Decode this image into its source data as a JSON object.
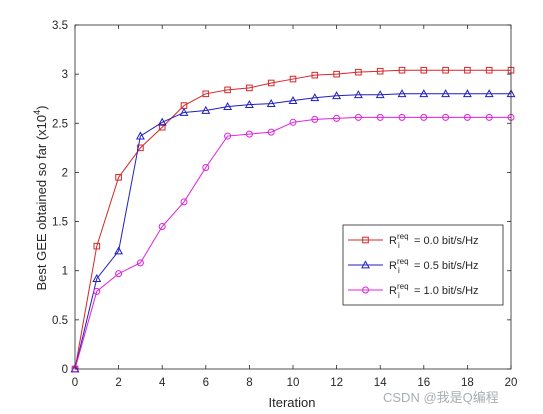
{
  "chart_data": {
    "type": "line",
    "xlabel": "Iteration",
    "ylabel": "Best GEE obtained so far (x10",
    "ylabel_exponent": "4",
    "ylabel_close": ")",
    "xlim": [
      0,
      20
    ],
    "ylim": [
      0,
      3.5
    ],
    "xticks": [
      0,
      2,
      4,
      6,
      8,
      10,
      12,
      14,
      16,
      18,
      20
    ],
    "yticks": [
      0,
      0.5,
      1,
      1.5,
      2,
      2.5,
      3,
      3.5
    ],
    "ytick_labels": [
      "0",
      "0.5",
      "1",
      "1.5",
      "2",
      "2.5",
      "3",
      "3.5"
    ],
    "grid": false,
    "legend_position": "right",
    "x": [
      0,
      1,
      2,
      3,
      4,
      5,
      6,
      7,
      8,
      9,
      10,
      11,
      12,
      13,
      14,
      15,
      16,
      17,
      18,
      19,
      20
    ],
    "series": [
      {
        "legend_base": "R",
        "legend_sub": "i",
        "legend_sup": "req",
        "legend_rest": " = 0.0 bit/s/Hz",
        "color": "#d62728",
        "marker": "square",
        "values": [
          0,
          1.25,
          1.95,
          2.25,
          2.46,
          2.68,
          2.8,
          2.84,
          2.86,
          2.91,
          2.95,
          2.99,
          3.0,
          3.02,
          3.03,
          3.04,
          3.04,
          3.04,
          3.04,
          3.04,
          3.04
        ]
      },
      {
        "legend_base": "R",
        "legend_sub": "i",
        "legend_sup": "req",
        "legend_rest": " = 0.5 bit/s/Hz",
        "color": "#1f1fbf",
        "marker": "triangle",
        "values": [
          0,
          0.92,
          1.2,
          2.37,
          2.51,
          2.61,
          2.63,
          2.67,
          2.69,
          2.7,
          2.73,
          2.76,
          2.78,
          2.79,
          2.79,
          2.8,
          2.8,
          2.8,
          2.8,
          2.8,
          2.8
        ]
      },
      {
        "legend_base": "R",
        "legend_sub": "i",
        "legend_sup": "req",
        "legend_rest": " = 1.0 bit/s/Hz",
        "color": "#e020e0",
        "marker": "circle",
        "values": [
          0,
          0.79,
          0.97,
          1.08,
          1.45,
          1.7,
          2.05,
          2.37,
          2.39,
          2.41,
          2.51,
          2.54,
          2.55,
          2.56,
          2.56,
          2.56,
          2.56,
          2.56,
          2.56,
          2.56,
          2.56
        ]
      }
    ]
  },
  "watermark": "CSDN @我是Q编程"
}
